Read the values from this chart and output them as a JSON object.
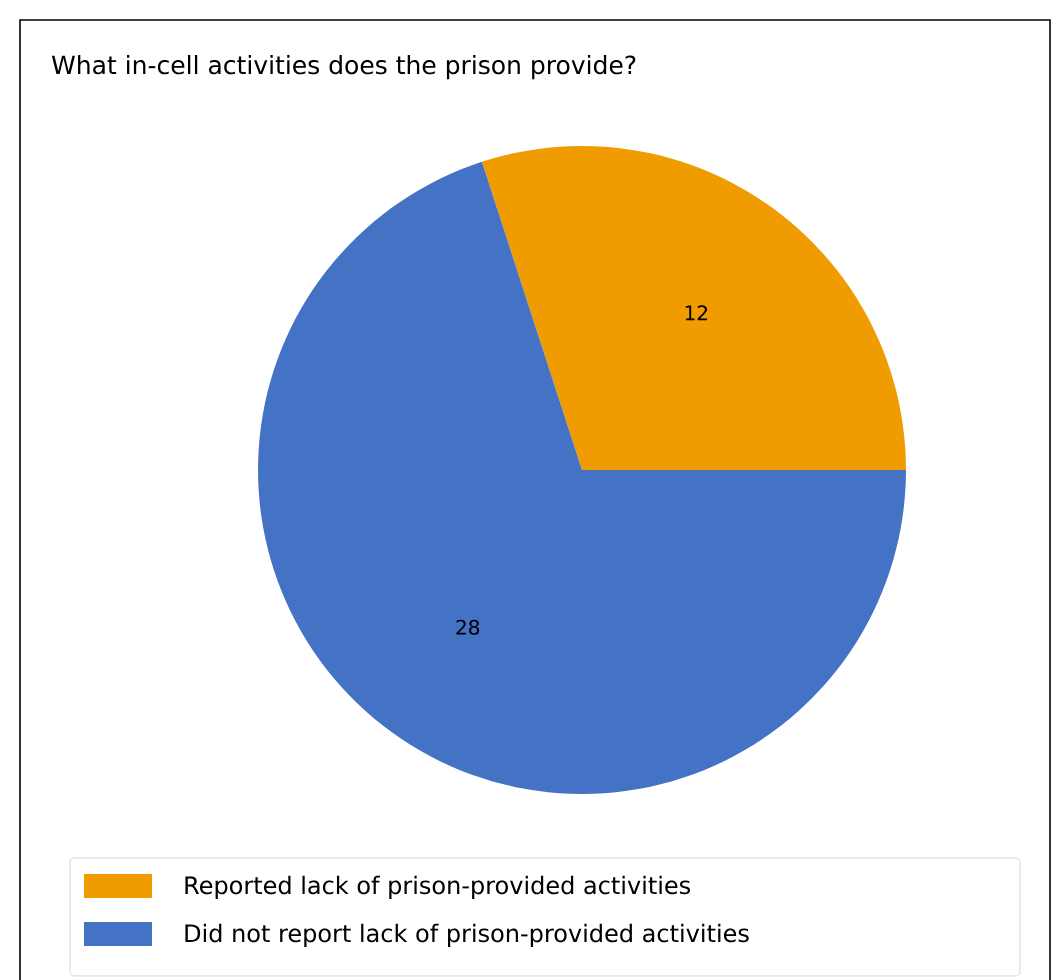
{
  "chart_data": {
    "type": "pie",
    "title": "What in-cell activities does the prison provide?",
    "categories": [
      "Reported lack of prison-provided activities",
      "Did not report lack of prison-provided activities"
    ],
    "values": [
      12,
      28
    ],
    "colors": [
      "#f09c00",
      "#4472c4"
    ],
    "data_labels": true,
    "legend": "bottom"
  }
}
